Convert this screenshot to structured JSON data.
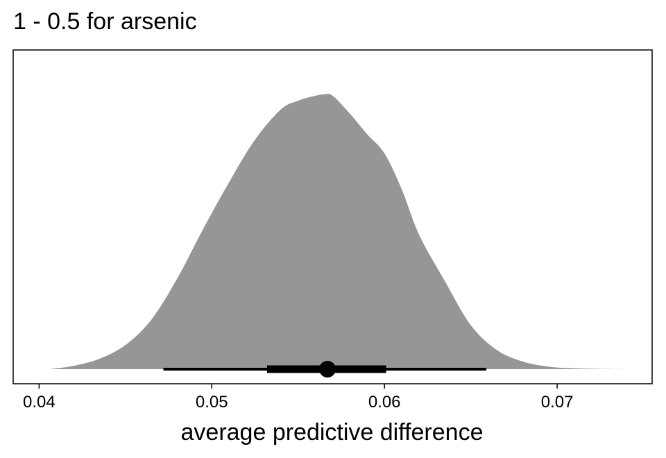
{
  "chart_data": {
    "type": "area",
    "title": "1 - 0.5 for arsenic",
    "xlabel": "average predictive difference",
    "ylabel": "",
    "xlim": [
      0.0385,
      0.0755
    ],
    "x_ticks": [
      0.04,
      0.05,
      0.06,
      0.07
    ],
    "x_tick_labels": [
      "0.04",
      "0.05",
      "0.06",
      "0.07"
    ],
    "density_color": "#969696",
    "interval_color": "#000000",
    "density": {
      "x": [
        0.0407,
        0.042,
        0.0435,
        0.045,
        0.0465,
        0.048,
        0.0495,
        0.051,
        0.0525,
        0.054,
        0.055,
        0.056,
        0.0565,
        0.057,
        0.058,
        0.059,
        0.06,
        0.061,
        0.062,
        0.0635,
        0.065,
        0.0665,
        0.068,
        0.0695,
        0.071,
        0.0725,
        0.0743
      ],
      "y": [
        0.001,
        0.012,
        0.038,
        0.088,
        0.18,
        0.33,
        0.51,
        0.68,
        0.835,
        0.945,
        0.977,
        0.995,
        1.0,
        0.995,
        0.93,
        0.855,
        0.785,
        0.655,
        0.49,
        0.32,
        0.16,
        0.07,
        0.028,
        0.009,
        0.003,
        0.001,
        0.0
      ]
    },
    "point_estimate": 0.0567,
    "interval_inner": [
      0.0532,
      0.0601
    ],
    "interval_outer": [
      0.0472,
      0.0659
    ]
  }
}
